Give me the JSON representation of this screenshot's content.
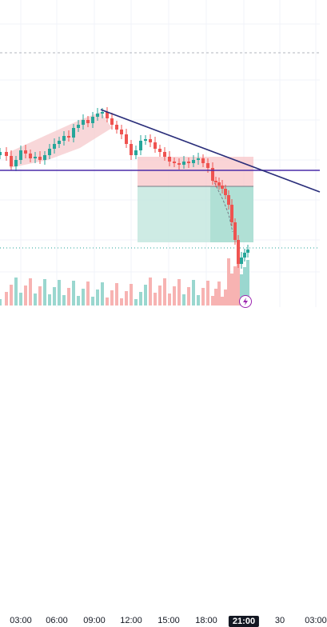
{
  "time_axis": {
    "labels": [
      "03:00",
      "06:00",
      "09:00",
      "12:00",
      "15:00",
      "18:00",
      "21:00",
      "30",
      "03:00"
    ],
    "active_label": "21:00"
  },
  "icons": {
    "event_badge": "lightning-icon"
  },
  "colors": {
    "up_candle": "#26a69a",
    "down_candle": "#ef5350",
    "trendline": "#2a2e7a",
    "horizontal_line": "#4a2ca8",
    "stop_zone": "#f9c9cc",
    "target_zone": "#c5e8df",
    "up_volume": "#9ad7cf",
    "down_volume": "#f7b3b2",
    "highlight_band": "#f5c6c9",
    "event_badge_border": "#9c27b0"
  }
}
